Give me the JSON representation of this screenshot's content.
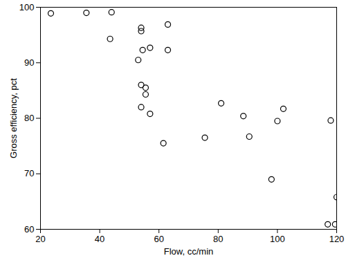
{
  "chart_data": {
    "type": "scatter",
    "x_label": "Flow, cc/min",
    "y_label": "Gross efficiency, pct",
    "x": [
      23.5,
      35.5,
      44,
      43.5,
      54,
      54,
      53,
      54.5,
      57,
      63,
      63,
      54,
      55.5,
      55.5,
      54,
      57,
      61.5,
      75.5,
      81,
      88.5,
      90.5,
      98,
      100,
      102,
      118,
      120,
      117,
      119.5
    ],
    "values": [
      98.9,
      99.0,
      99.1,
      94.3,
      96.3,
      95.7,
      90.5,
      92.3,
      92.7,
      96.9,
      92.3,
      86,
      85.5,
      84.3,
      82,
      80.8,
      75.5,
      76.5,
      82.7,
      80.4,
      76.7,
      69,
      79.5,
      81.7,
      79.6,
      65.8,
      60.9,
      60.9
    ],
    "xlim": [
      20,
      120
    ],
    "xticks": [
      20,
      40,
      60,
      80,
      100,
      120
    ],
    "ylim": [
      60,
      100
    ],
    "yticks": [
      60,
      70,
      80,
      90,
      100
    ],
    "color": "#000000",
    "marker": "open_circle",
    "grid": false
  }
}
